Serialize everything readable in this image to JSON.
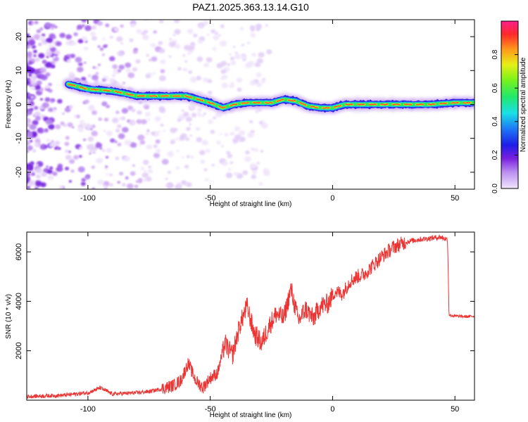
{
  "title": "PAZ1.2025.363.13.14.G10",
  "chart_data": [
    {
      "type": "heatmap",
      "xlabel": "Height of straight line (km)",
      "ylabel": "Frequency (Hz)",
      "xlim": [
        -125,
        58
      ],
      "ylim": [
        -25,
        25
      ],
      "xticks": [
        -100,
        -50,
        0,
        50
      ],
      "xtick_labels": [
        "-100",
        "-50",
        "0",
        "50"
      ],
      "yticks": [
        -20,
        -10,
        0,
        10,
        20
      ],
      "ytick_labels": [
        "-20",
        "-10",
        "0",
        "10",
        "20"
      ],
      "ridge": {
        "x": [
          -108,
          -100,
          -90,
          -80,
          -70,
          -60,
          -55,
          -50,
          -45,
          -40,
          -35,
          -30,
          -25,
          -20,
          -15,
          -10,
          -5,
          0,
          5,
          10,
          20,
          30,
          40,
          50,
          58
        ],
        "freq": [
          6,
          4.5,
          4,
          2.5,
          2.5,
          2.5,
          1.5,
          0.5,
          -1,
          0,
          0.5,
          0.5,
          0.5,
          1.5,
          1,
          -0.5,
          -1,
          -1,
          0,
          0,
          0,
          0,
          0,
          0.5,
          0.5
        ]
      },
      "colorbar": {
        "label": "Normalized spectral amplitude",
        "range": [
          0,
          1
        ],
        "ticks": [
          0.0,
          0.2,
          0.4,
          0.6,
          0.8
        ],
        "tick_labels": [
          "0.0",
          "0.2",
          "0.4",
          "0.6",
          "0.8"
        ]
      }
    },
    {
      "type": "line",
      "xlabel": "Height of straight line (km)",
      "ylabel": "SNR (10 * v/v)",
      "xlim": [
        -125,
        58
      ],
      "ylim": [
        0,
        6800
      ],
      "xticks": [
        -100,
        -50,
        0,
        50
      ],
      "xtick_labels": [
        "-100",
        "-50",
        "0",
        "50"
      ],
      "yticks": [
        2000,
        4000,
        6000
      ],
      "ytick_labels": [
        "2000",
        "4000",
        "6000"
      ],
      "series": [
        {
          "name": "SNR",
          "color": "#ee3333",
          "x": [
            -125,
            -110,
            -100,
            -95,
            -90,
            -80,
            -75,
            -70,
            -65,
            -62,
            -59,
            -56,
            -53,
            -50,
            -47,
            -44,
            -41,
            -38,
            -35,
            -32,
            -29,
            -26,
            -23,
            -20,
            -17,
            -14,
            -11,
            -8,
            -5,
            -2,
            1,
            4,
            7,
            10,
            13,
            16,
            20,
            25,
            30,
            35,
            40,
            44,
            47,
            47.6,
            50,
            55,
            58
          ],
          "y": [
            150,
            200,
            300,
            500,
            250,
            300,
            350,
            450,
            600,
            800,
            1500,
            800,
            500,
            900,
            1100,
            2300,
            1800,
            3000,
            3800,
            2700,
            2300,
            3000,
            3500,
            3300,
            4500,
            3200,
            3700,
            3300,
            3800,
            3900,
            4400,
            4300,
            4800,
            5000,
            5100,
            5400,
            5800,
            6200,
            6400,
            6500,
            6550,
            6600,
            6500,
            3450,
            3400,
            3380,
            3400
          ]
        }
      ]
    }
  ]
}
